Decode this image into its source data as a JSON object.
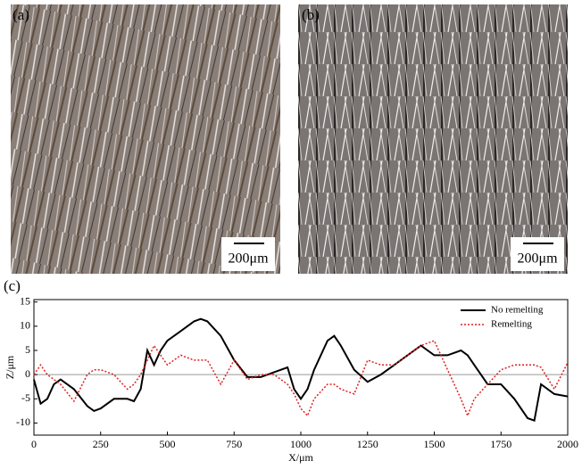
{
  "panels": [
    {
      "label": "(a)",
      "scale_bar": "200μm"
    },
    {
      "label": "(b)",
      "scale_bar": "200μm"
    }
  ],
  "chart_data": {
    "type": "line",
    "panel_label": "(c)",
    "x_label": "X/μm",
    "y_label": "Z/μm",
    "x": [
      0,
      25,
      50,
      75,
      100,
      150,
      200,
      225,
      250,
      300,
      350,
      375,
      400,
      425,
      450,
      475,
      500,
      550,
      600,
      625,
      650,
      700,
      750,
      800,
      850,
      900,
      950,
      975,
      1000,
      1025,
      1050,
      1100,
      1125,
      1150,
      1200,
      1250,
      1300,
      1350,
      1400,
      1450,
      1500,
      1550,
      1600,
      1625,
      1650,
      1700,
      1750,
      1800,
      1850,
      1875,
      1900,
      1950,
      2000
    ],
    "series": [
      {
        "name": "No remelting",
        "color": "#000000",
        "dash": false,
        "values": [
          -1,
          -6,
          -5,
          -2,
          -1,
          -3,
          -6.5,
          -7.5,
          -7,
          -5,
          -5,
          -5.5,
          -3,
          5,
          2,
          5,
          7,
          9,
          11,
          11.5,
          11,
          8,
          3,
          -0.5,
          -0.5,
          0.5,
          1.5,
          -3,
          -5,
          -3,
          1,
          7,
          8,
          6,
          1,
          -1.5,
          0,
          2,
          4,
          6,
          4,
          4,
          5,
          4,
          2,
          -2,
          -2,
          -5,
          -9,
          -9.5,
          -2,
          -4,
          -4.5
        ]
      },
      {
        "name": "Remelting",
        "color": "#e02020",
        "dash": true,
        "values": [
          0,
          2,
          0,
          -1,
          -2,
          -5.5,
          0,
          1,
          1,
          0,
          -3,
          -2,
          0,
          3,
          6,
          4,
          2,
          4,
          3,
          3,
          3,
          -2,
          3,
          -1,
          0,
          0,
          -2,
          -4,
          -7,
          -8.5,
          -5,
          -2,
          -2,
          -3,
          -4,
          3,
          2,
          2,
          4,
          6,
          7,
          1,
          -5,
          -8.5,
          -5,
          -2,
          1,
          2,
          2,
          2,
          1.5,
          -3,
          2.5
        ]
      }
    ],
    "xlim": [
      0,
      2000
    ],
    "ylim": [
      -12.5,
      15.5
    ],
    "xticks": [
      0,
      250,
      500,
      750,
      1000,
      1250,
      1500,
      1750,
      2000
    ],
    "yticks": [
      -10,
      -5,
      0,
      5,
      10,
      15
    ],
    "legend": "upper right"
  }
}
